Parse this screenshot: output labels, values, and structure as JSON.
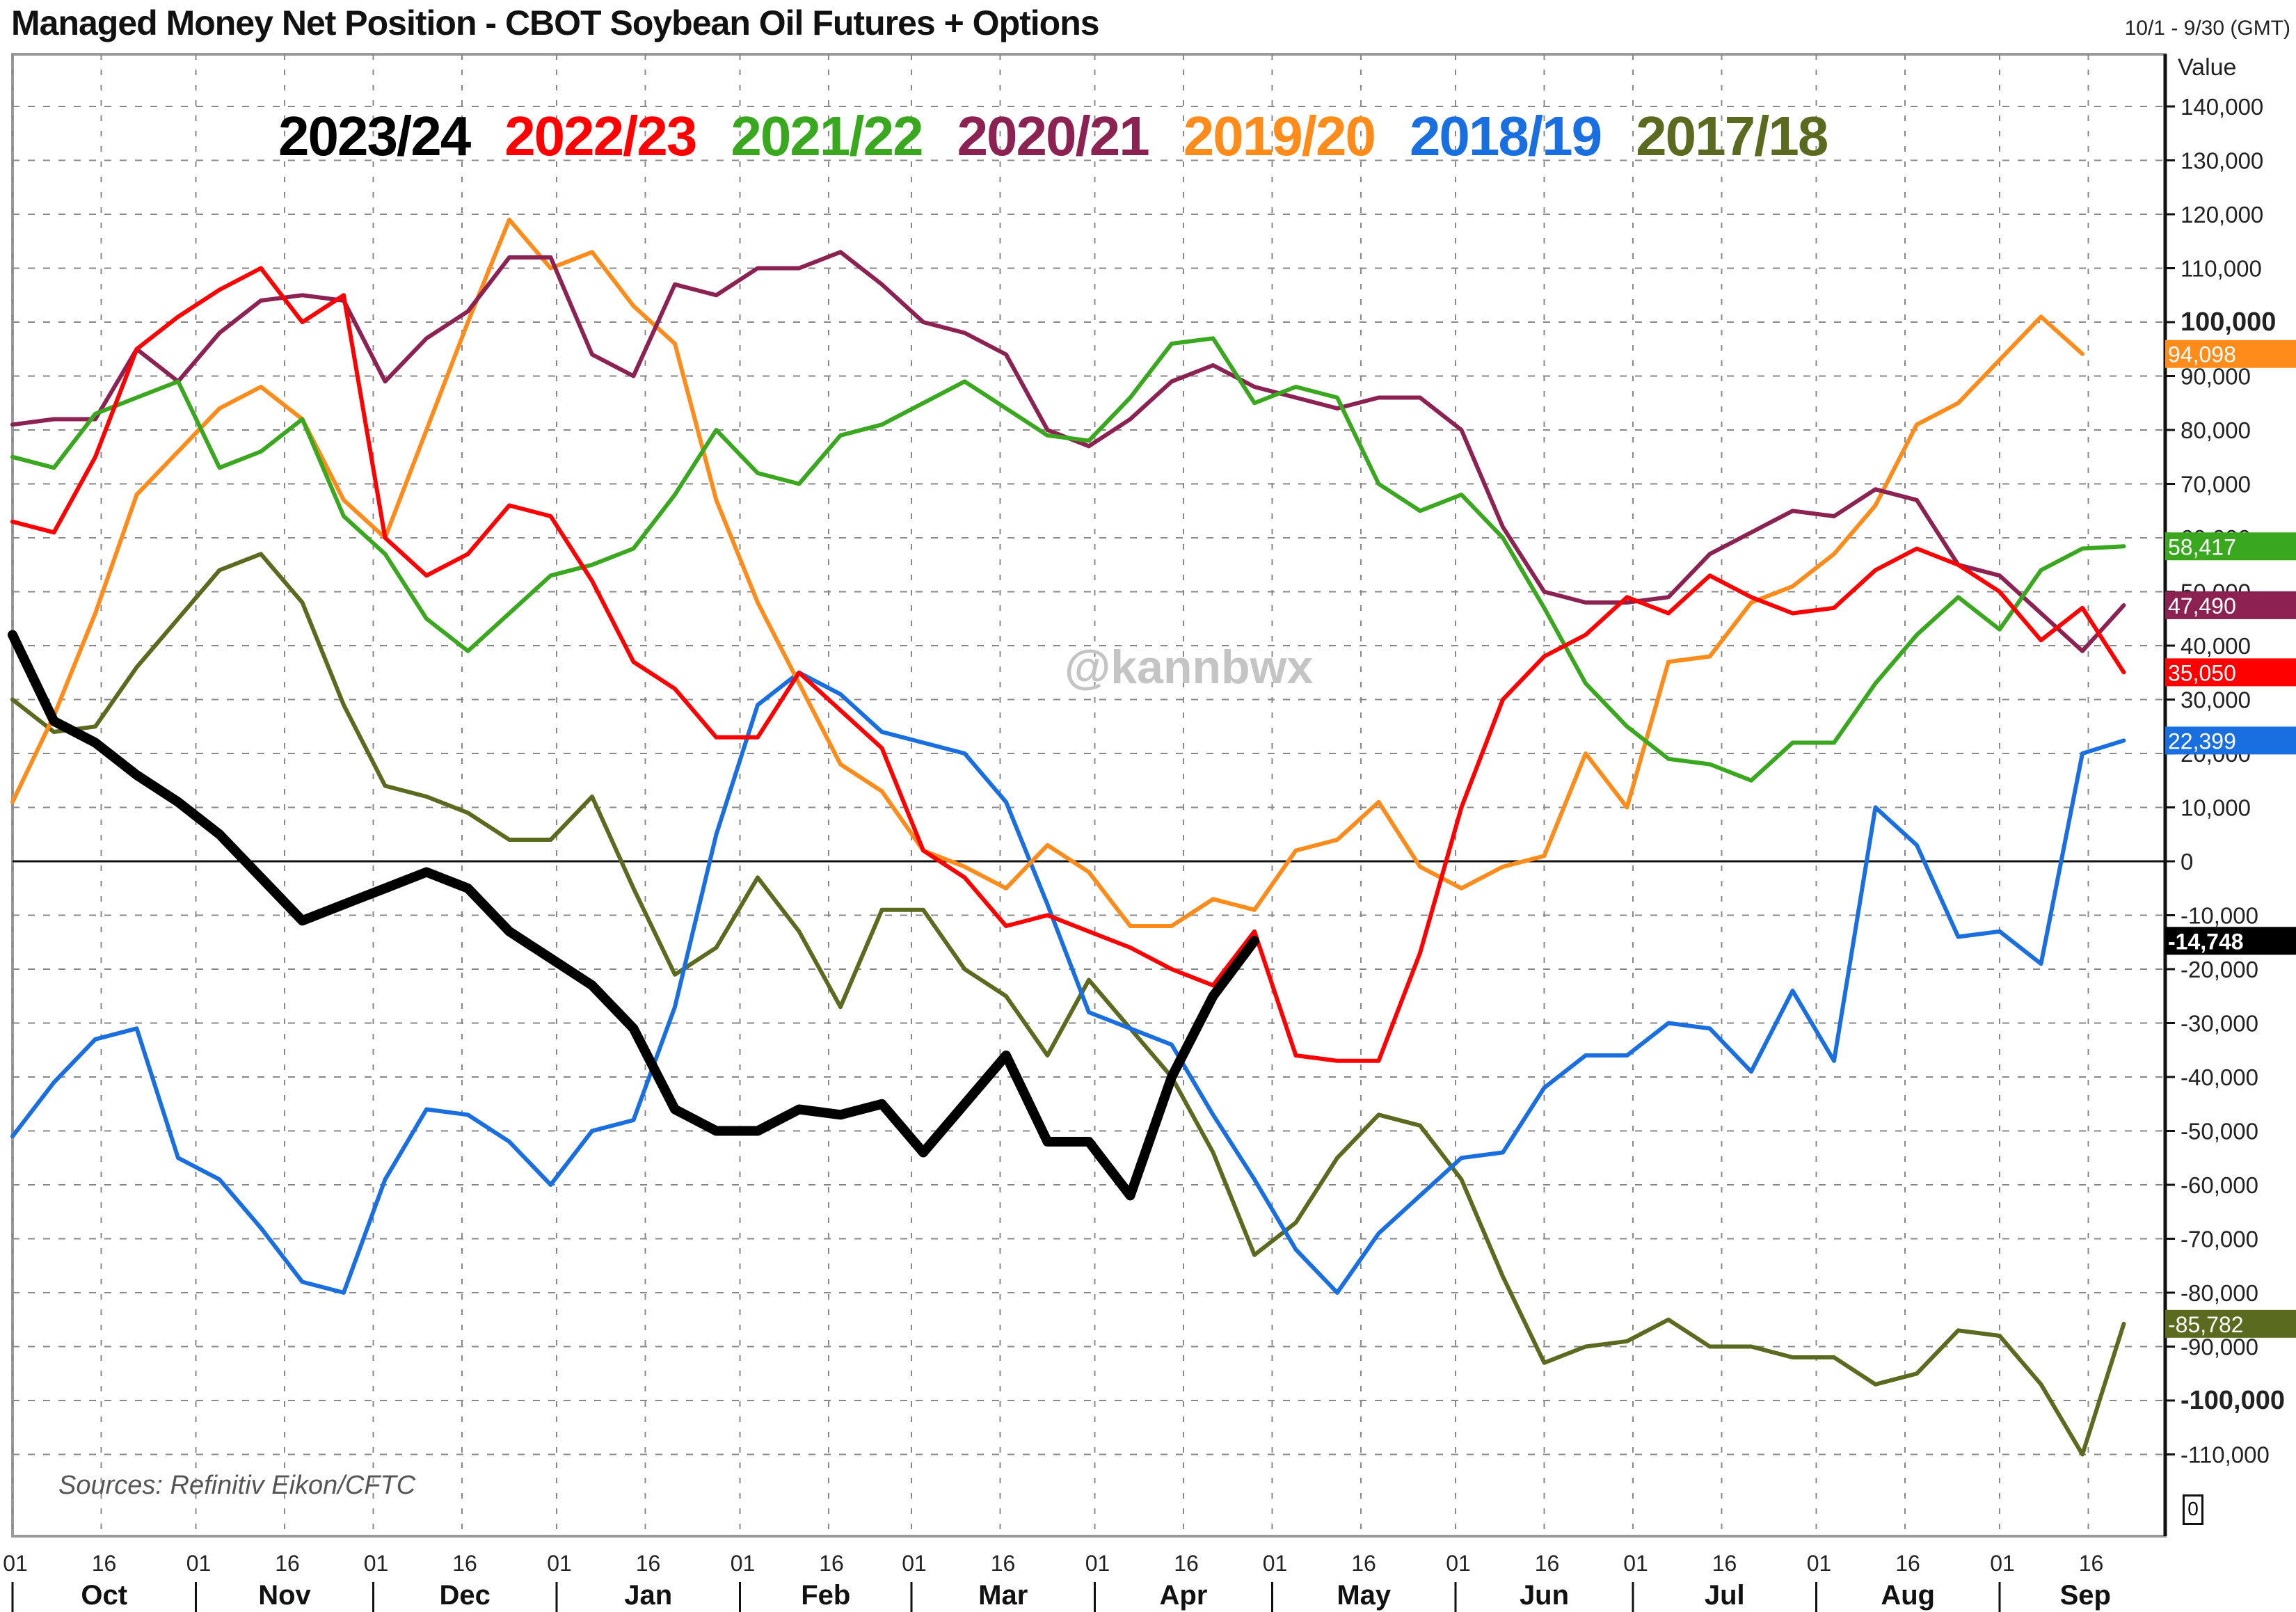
{
  "header": {
    "title": "Managed Money Net Position - CBOT Soybean Oil Futures + Options",
    "date_range": "10/1 - 9/30 (GMT)",
    "axis_label": "Value"
  },
  "watermark": "@kannbwx",
  "source": "Sources: Refinitiv Eikon/CFTC",
  "corner_label": "0",
  "chart_data": {
    "type": "line",
    "title": "Managed Money Net Position - CBOT Soybean Oil Futures + Options",
    "xlabel": "",
    "ylabel": "Value",
    "ylim": [
      -110000,
      145000
    ],
    "grid": true,
    "legend_position": "top-inside",
    "x_ticks": [
      "01",
      "16",
      "01",
      "16",
      "01",
      "16",
      "01",
      "16",
      "01",
      "16",
      "01",
      "16",
      "01",
      "16",
      "01",
      "16",
      "01",
      "16",
      "01",
      "16",
      "01",
      "16",
      "01",
      "16",
      "01",
      "16"
    ],
    "months": [
      "Oct",
      "Nov",
      "Dec",
      "Jan",
      "Feb",
      "Mar",
      "Apr",
      "May",
      "Jun",
      "Jul",
      "Aug",
      "Sep"
    ],
    "y_ticks": [
      140000,
      130000,
      120000,
      110000,
      100000,
      90000,
      80000,
      70000,
      60000,
      50000,
      40000,
      30000,
      20000,
      10000,
      0,
      -10000,
      -20000,
      -30000,
      -40000,
      -50000,
      -60000,
      -70000,
      -80000,
      -90000,
      -100000,
      -110000
    ],
    "y_tick_labels": [
      "140,000",
      "130,000",
      "120,000",
      "110,000",
      "100,000",
      "90,000",
      "80,000",
      "70,000",
      "60,000",
      "50,000",
      "40,000",
      "30,000",
      "20,000",
      "10,000",
      "0",
      "-10,000",
      "-20,000",
      "-30,000",
      "-40,000",
      "-50,000",
      "-60,000",
      "-70,000",
      "-80,000",
      "-90,000",
      "-100,000",
      "-110,000"
    ],
    "x_unit": "week index from Oct 1 (weekly observations)",
    "series": [
      {
        "name": "2023/24",
        "color": "#000000",
        "width": 14,
        "last_value": "-14,748",
        "values": [
          42000,
          26000,
          22000,
          16000,
          11000,
          5000,
          -3000,
          -11000,
          -8000,
          -5000,
          -2000,
          -5000,
          -13000,
          -18000,
          -23000,
          -31000,
          -46000,
          -50000,
          -50000,
          -46000,
          -47000,
          -45000,
          -54000,
          -45000,
          -36000,
          -52000,
          -52000,
          -62000,
          -40000,
          -25000,
          -14748
        ]
      },
      {
        "name": "2022/23",
        "color": "#ff0000",
        "width": 6,
        "last_value": "35,050",
        "values": [
          63000,
          61000,
          75000,
          95000,
          101000,
          106000,
          110000,
          100000,
          105000,
          60000,
          53000,
          57000,
          66000,
          64000,
          52000,
          37000,
          32000,
          23000,
          23000,
          35000,
          28000,
          21000,
          2000,
          -3000,
          -12000,
          -10000,
          -13000,
          -16000,
          -20000,
          -23000,
          -13000,
          -36000,
          -37000,
          -37000,
          -17000,
          10000,
          30000,
          38000,
          42000,
          49000,
          46000,
          53000,
          49000,
          46000,
          47000,
          54000,
          58000,
          55000,
          50000,
          41000,
          47000,
          35050
        ]
      },
      {
        "name": "2021/22",
        "color": "#3aa81f",
        "width": 6,
        "last_value": "58,417",
        "values": [
          75000,
          73000,
          83000,
          86000,
          89000,
          73000,
          76000,
          82000,
          64000,
          57000,
          45000,
          39000,
          46000,
          53000,
          55000,
          58000,
          68000,
          80000,
          72000,
          70000,
          79000,
          81000,
          85000,
          89000,
          84000,
          79000,
          78000,
          86000,
          96000,
          97000,
          85000,
          88000,
          86000,
          70000,
          65000,
          68000,
          60000,
          47000,
          33000,
          25000,
          19000,
          18000,
          15000,
          22000,
          22000,
          33000,
          42000,
          49000,
          43000,
          54000,
          58000,
          58417
        ]
      },
      {
        "name": "2020/21",
        "color": "#8b2252",
        "width": 6,
        "last_value": "47,490",
        "values": [
          81000,
          82000,
          82000,
          95000,
          89000,
          98000,
          104000,
          105000,
          104000,
          89000,
          97000,
          102000,
          112000,
          112000,
          94000,
          90000,
          107000,
          105000,
          110000,
          110000,
          113000,
          107000,
          100000,
          98000,
          94000,
          80000,
          77000,
          82000,
          89000,
          92000,
          88000,
          86000,
          84000,
          86000,
          86000,
          80000,
          62000,
          50000,
          48000,
          48000,
          49000,
          57000,
          61000,
          65000,
          64000,
          69000,
          67000,
          55000,
          53000,
          46000,
          39000,
          47490
        ]
      },
      {
        "name": "2019/20",
        "color": "#ff8c1a",
        "width": 6,
        "last_value": "94,098",
        "values": [
          11000,
          27000,
          46000,
          68000,
          76000,
          84000,
          88000,
          82000,
          67000,
          60000,
          80000,
          100000,
          119000,
          110000,
          113000,
          103000,
          96000,
          67000,
          48000,
          33000,
          18000,
          13000,
          2000,
          -1000,
          -5000,
          3000,
          -2000,
          -12000,
          -12000,
          -7000,
          -9000,
          2000,
          4000,
          11000,
          -1000,
          -5000,
          -1000,
          1000,
          20000,
          10000,
          37000,
          38000,
          48000,
          51000,
          57000,
          66000,
          81000,
          85000,
          93000,
          101000,
          94098
        ]
      },
      {
        "name": "2018/19",
        "color": "#1a6fe0",
        "width": 6,
        "last_value": "22,399",
        "values": [
          -51000,
          -41000,
          -33000,
          -31000,
          -55000,
          -59000,
          -68000,
          -78000,
          -80000,
          -59000,
          -46000,
          -47000,
          -52000,
          -60000,
          -50000,
          -48000,
          -27000,
          5000,
          29000,
          35000,
          31000,
          24000,
          22000,
          20000,
          11000,
          -8000,
          -28000,
          -31000,
          -34000,
          -47000,
          -59000,
          -72000,
          -80000,
          -69000,
          -62000,
          -55000,
          -54000,
          -42000,
          -36000,
          -36000,
          -30000,
          -31000,
          -39000,
          -24000,
          -37000,
          10000,
          3000,
          -14000,
          -13000,
          -19000,
          20000,
          22399
        ]
      },
      {
        "name": "2017/18",
        "color": "#5a6a1e",
        "width": 6,
        "last_value": "-85,782",
        "values": [
          30000,
          24000,
          25000,
          36000,
          45000,
          54000,
          57000,
          48000,
          29000,
          14000,
          12000,
          9000,
          4000,
          4000,
          12000,
          -5000,
          -21000,
          -16000,
          -3000,
          -13000,
          -27000,
          -9000,
          -9000,
          -20000,
          -25000,
          -36000,
          -22000,
          -31000,
          -40000,
          -54000,
          -73000,
          -67000,
          -55000,
          -47000,
          -49000,
          -59000,
          -77000,
          -93000,
          -90000,
          -89000,
          -85000,
          -90000,
          -90000,
          -92000,
          -92000,
          -97000,
          -95000,
          -87000,
          -88000,
          -97000,
          -110000,
          -85782
        ]
      }
    ]
  }
}
